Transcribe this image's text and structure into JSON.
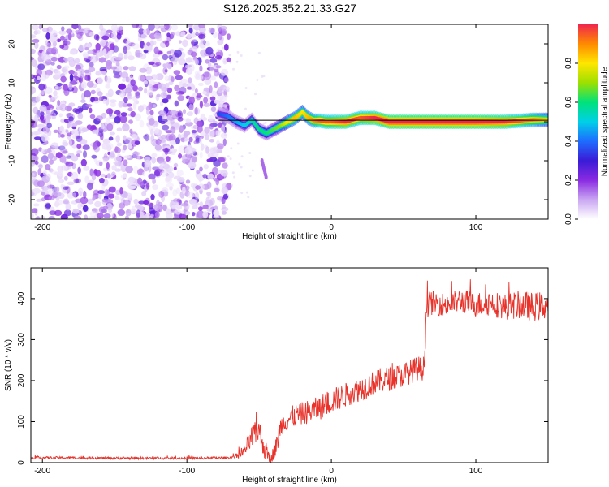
{
  "title": "S126.2025.352.21.33.G27",
  "colors": {
    "background": "#ffffff",
    "snr_line": "#e8322a",
    "zero_line": "#000000",
    "cmap_stops": [
      "#ffffff",
      "#c9a6f2",
      "#8a2be2",
      "#3a1bd6",
      "#1e6cff",
      "#00d0e8",
      "#00e27a",
      "#9de000",
      "#ffe600",
      "#ff8a00",
      "#f0264d"
    ]
  },
  "chart_data": [
    {
      "id": "spectrogram",
      "type": "heatmap",
      "xlabel": "Height of straight line (km)",
      "ylabel": "Frequency (Hz)",
      "xlim": [
        -208,
        150
      ],
      "ylim": [
        -25,
        25
      ],
      "xticks": [
        -200,
        -100,
        0,
        100
      ],
      "yticks": [
        -20,
        -10,
        0,
        10,
        20
      ],
      "noise_region": {
        "x": [
          -208,
          -75
        ],
        "amplitude_range": [
          0.0,
          0.25
        ]
      },
      "signal_track": {
        "x": [
          -78,
          -72,
          -66,
          -60,
          -55,
          -50,
          -45,
          -40,
          -35,
          -30,
          -25,
          -20,
          -16,
          -12,
          -8,
          -4,
          0,
          10,
          20,
          30,
          40,
          60,
          80,
          100,
          120,
          140,
          150
        ],
        "freq": [
          2,
          1.5,
          0,
          -1,
          0.5,
          -2,
          -3,
          -2,
          -1,
          0,
          1,
          2.5,
          1,
          0.3,
          0.3,
          0,
          0,
          0,
          1,
          1,
          0,
          0,
          0,
          0,
          0,
          0.5,
          0.5
        ],
        "amplitude": [
          0.25,
          0.3,
          0.35,
          0.4,
          0.45,
          0.5,
          0.5,
          0.55,
          0.6,
          0.7,
          0.75,
          0.7,
          0.75,
          0.8,
          0.85,
          0.85,
          0.85,
          0.9,
          0.85,
          0.9,
          0.95,
          0.95,
          0.95,
          0.95,
          0.9,
          0.8,
          0.7
        ]
      },
      "colorbar": {
        "label": "Normalized spectral amplitude",
        "range": [
          0,
          1
        ],
        "ticks": [
          0.0,
          0.2,
          0.4,
          0.6,
          0.8
        ],
        "tick_labels": [
          "0.0",
          "0.2",
          "0.4",
          "0.6",
          "0.8"
        ]
      }
    },
    {
      "id": "snr",
      "type": "line",
      "xlabel": "Height of straight line (km)",
      "ylabel": "SNR (10 * v/v)",
      "xlim": [
        -208,
        150
      ],
      "ylim": [
        0,
        475
      ],
      "xticks": [
        -200,
        -100,
        0,
        100
      ],
      "yticks": [
        0,
        100,
        200,
        300,
        400
      ],
      "series": [
        {
          "name": "SNR",
          "x": [
            -208,
            -180,
            -150,
            -120,
            -90,
            -70,
            -62,
            -55,
            -50,
            -46,
            -42,
            -38,
            -35,
            -32,
            -28,
            -20,
            -10,
            0,
            10,
            20,
            30,
            40,
            50,
            60,
            64,
            66,
            70,
            80,
            90,
            100,
            110,
            120,
            130,
            140,
            150
          ],
          "y": [
            12,
            12,
            11,
            11,
            11,
            12,
            20,
            60,
            80,
            30,
            10,
            40,
            90,
            100,
            110,
            120,
            130,
            150,
            165,
            180,
            195,
            205,
            215,
            230,
            230,
            385,
            390,
            385,
            395,
            385,
            390,
            380,
            385,
            380,
            385
          ],
          "noise_amplitude": [
            3,
            3,
            3,
            3,
            3,
            3,
            10,
            30,
            30,
            25,
            10,
            25,
            25,
            25,
            28,
            28,
            30,
            30,
            30,
            30,
            30,
            30,
            30,
            30,
            30,
            30,
            30,
            28,
            30,
            30,
            32,
            32,
            35,
            35,
            35
          ]
        }
      ]
    }
  ]
}
